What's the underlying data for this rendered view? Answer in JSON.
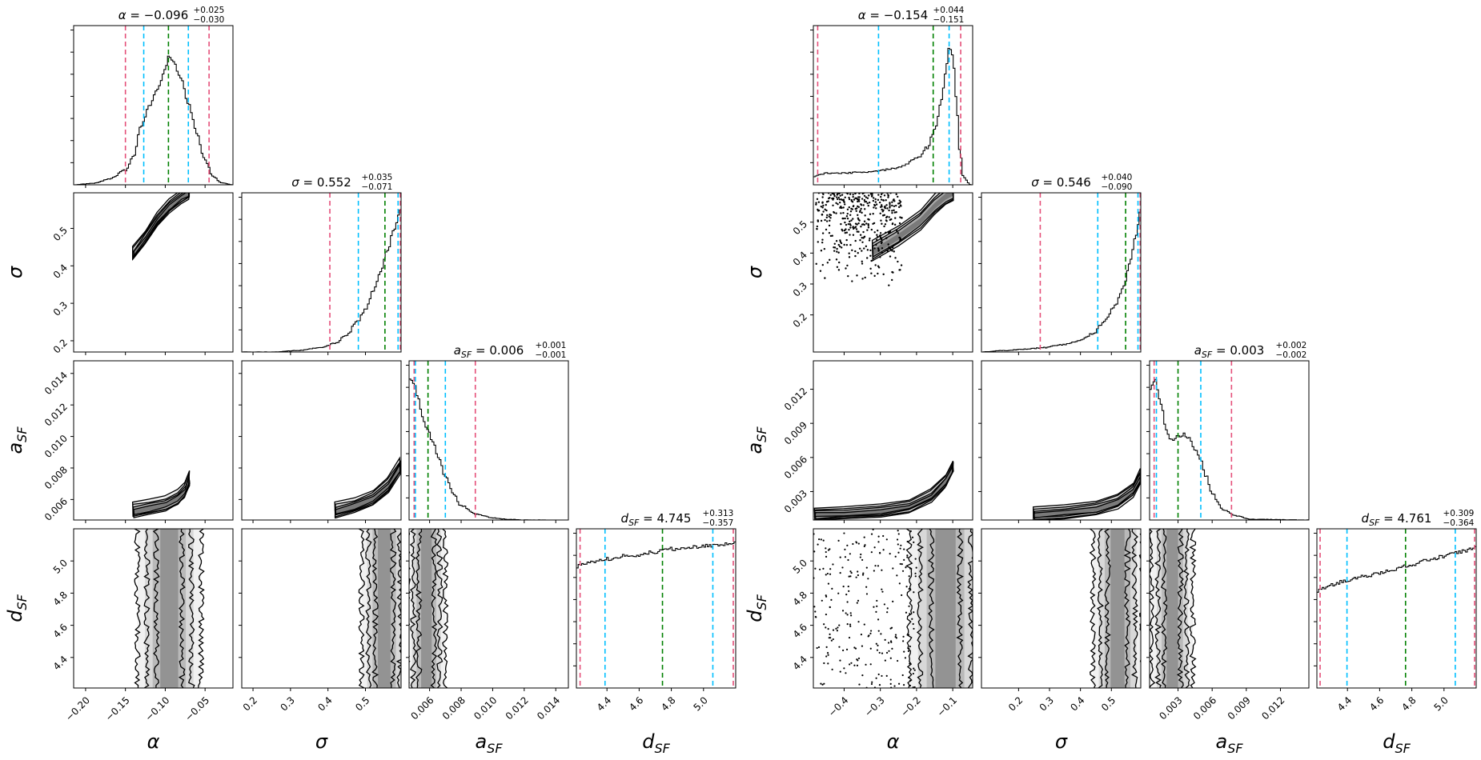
{
  "colors": {
    "median": "#008000",
    "inner_quantile": "#00bfff",
    "outer_quantile": "#e5507a",
    "contour": "#000000",
    "density_dark": "#404040",
    "density_light": "#e6e6e6"
  },
  "chart_data": [
    {
      "type": "corner",
      "params": [
        "α",
        "σ",
        "a_SF",
        "d_SF"
      ],
      "axis_labels": {
        "x": [
          "α",
          "σ",
          "a",
          "d"
        ],
        "y": [
          "σ",
          "a",
          "d"
        ],
        "subscript": "SF"
      },
      "titles": [
        {
          "symbol": "α",
          "sub": "",
          "value": "−0.096",
          "plus": "+0.025",
          "minus": "−0.030"
        },
        {
          "symbol": "σ",
          "sub": "",
          "value": "0.552",
          "plus": "+0.035",
          "minus": "−0.071"
        },
        {
          "symbol": "a",
          "sub": "SF",
          "value": "0.006",
          "plus": "+0.001",
          "minus": "−0.001"
        },
        {
          "symbol": "d",
          "sub": "SF",
          "value": "4.745",
          "plus": "+0.313",
          "minus": "−0.357"
        }
      ],
      "ranges": [
        [
          -0.215,
          -0.015
        ],
        [
          0.17,
          0.595
        ],
        [
          0.0047,
          0.0148
        ],
        [
          4.21,
          5.2
        ]
      ],
      "ticks": [
        [
          -0.2,
          -0.15,
          -0.1,
          -0.05
        ],
        [
          0.2,
          0.3,
          0.4,
          0.5
        ],
        [
          0.006,
          0.008,
          0.01,
          0.012,
          0.014
        ],
        [
          4.4,
          4.6,
          4.8,
          5.0
        ]
      ],
      "tick_labels": [
        [
          "−0.20",
          "−0.15",
          "−0.10",
          "−0.05"
        ],
        [
          "0.2",
          "0.3",
          "0.4",
          "0.5"
        ],
        [
          "0.006",
          "0.008",
          "0.010",
          "0.012",
          "0.014"
        ],
        [
          "4.4",
          "4.6",
          "4.8",
          "5.0"
        ]
      ],
      "quantiles": [
        {
          "outer_lo": -0.15,
          "inner_lo": -0.127,
          "median": -0.096,
          "inner_hi": -0.071,
          "outer_hi": -0.045
        },
        {
          "outer_lo": 0.405,
          "inner_lo": 0.481,
          "median": 0.552,
          "inner_hi": 0.587,
          "outer_hi": 0.593
        },
        {
          "outer_lo": 0.00502,
          "inner_lo": 0.0051,
          "median": 0.0059,
          "inner_hi": 0.007,
          "outer_hi": 0.0089
        },
        {
          "outer_lo": 4.233,
          "inner_lo": 4.388,
          "median": 4.745,
          "inner_hi": 5.058,
          "outer_hi": 5.185
        }
      ],
      "histograms": [
        {
          "x": [
            -0.215,
            -0.19,
            -0.17,
            -0.15,
            -0.14,
            -0.13,
            -0.12,
            -0.11,
            -0.1,
            -0.095,
            -0.09,
            -0.08,
            -0.07,
            -0.06,
            -0.05,
            -0.04,
            -0.03,
            -0.015
          ],
          "y": [
            0.0,
            0.01,
            0.04,
            0.1,
            0.2,
            0.42,
            0.55,
            0.66,
            0.8,
            0.9,
            0.86,
            0.74,
            0.55,
            0.35,
            0.17,
            0.06,
            0.015,
            0.0
          ]
        },
        {
          "x": [
            0.17,
            0.25,
            0.32,
            0.38,
            0.42,
            0.45,
            0.48,
            0.5,
            0.52,
            0.54,
            0.56,
            0.575,
            0.595
          ],
          "y": [
            0.0,
            0.0,
            0.01,
            0.03,
            0.06,
            0.12,
            0.22,
            0.3,
            0.42,
            0.55,
            0.72,
            0.85,
            1.0
          ]
        },
        {
          "x": [
            0.0047,
            0.005,
            0.0053,
            0.0056,
            0.0059,
            0.0062,
            0.0066,
            0.007,
            0.0075,
            0.008,
            0.009,
            0.01,
            0.011,
            0.012,
            0.0148
          ],
          "y": [
            1.0,
            0.96,
            0.84,
            0.7,
            0.62,
            0.55,
            0.42,
            0.3,
            0.18,
            0.1,
            0.04,
            0.015,
            0.005,
            0.0,
            0.0
          ]
        },
        {
          "x": [
            4.21,
            4.3,
            4.4,
            4.5,
            4.6,
            4.7,
            4.8,
            4.9,
            5.0,
            5.1,
            5.2
          ],
          "y": [
            0.85,
            0.88,
            0.9,
            0.92,
            0.93,
            0.95,
            0.97,
            0.98,
            0.99,
            1.0,
            1.01
          ]
        }
      ],
      "ridges": [
        {
          "pair": [
            1,
            0
          ],
          "pts": [
            [
              -0.14,
              0.43
            ],
            [
              -0.125,
              0.47
            ],
            [
              -0.11,
              0.52
            ],
            [
              -0.095,
              0.555
            ],
            [
              -0.08,
              0.58
            ],
            [
              -0.07,
              0.592
            ]
          ],
          "width": 0.022,
          "levels": 4
        },
        {
          "pair": [
            2,
            0
          ],
          "pts": [
            [
              -0.14,
              0.0052
            ],
            [
              -0.12,
              0.0054
            ],
            [
              -0.1,
              0.0056
            ],
            [
              -0.085,
              0.006
            ],
            [
              -0.075,
              0.0065
            ],
            [
              -0.07,
              0.0072
            ]
          ],
          "width": 0.0006,
          "levels": 4
        },
        {
          "pair": [
            2,
            1
          ],
          "pts": [
            [
              0.42,
              0.0052
            ],
            [
              0.47,
              0.0055
            ],
            [
              0.52,
              0.006
            ],
            [
              0.56,
              0.0068
            ],
            [
              0.593,
              0.008
            ]
          ],
          "width": 0.0006,
          "levels": 4
        },
        {
          "pair": [
            3,
            0
          ],
          "vertical": true,
          "center": -0.095,
          "spread": 0.04,
          "levels": 3
        },
        {
          "pair": [
            3,
            1
          ],
          "vertical": true,
          "center": 0.55,
          "spread": 0.06,
          "levels": 3
        },
        {
          "pair": [
            3,
            2
          ],
          "vertical": true,
          "center": 0.0058,
          "spread": 0.0012,
          "levels": 3
        }
      ]
    },
    {
      "type": "corner",
      "params": [
        "α",
        "σ",
        "a_SF",
        "d_SF"
      ],
      "axis_labels": {
        "x": [
          "α",
          "σ",
          "a",
          "d"
        ],
        "y": [
          "σ",
          "a",
          "d"
        ],
        "subscript": "SF"
      },
      "titles": [
        {
          "symbol": "α",
          "sub": "",
          "value": "−0.154",
          "plus": "+0.044",
          "minus": "−0.151"
        },
        {
          "symbol": "σ",
          "sub": "",
          "value": "0.546",
          "plus": "+0.040",
          "minus": "−0.090"
        },
        {
          "symbol": "a",
          "sub": "SF",
          "value": "0.003",
          "plus": "+0.002",
          "minus": "−0.002"
        },
        {
          "symbol": "d",
          "sub": "SF",
          "value": "4.761",
          "plus": "+0.309",
          "minus": "−0.364"
        }
      ],
      "ranges": [
        [
          -0.485,
          -0.045
        ],
        [
          0.08,
          0.595
        ],
        [
          0.0005,
          0.0145
        ],
        [
          4.21,
          5.2
        ]
      ],
      "ticks": [
        [
          -0.4,
          -0.3,
          -0.2,
          -0.1
        ],
        [
          0.2,
          0.3,
          0.4,
          0.5
        ],
        [
          0.003,
          0.006,
          0.009,
          0.012
        ],
        [
          4.4,
          4.6,
          4.8,
          5.0
        ]
      ],
      "tick_labels": [
        [
          "−0.4",
          "−0.3",
          "−0.2",
          "−0.1"
        ],
        [
          "0.2",
          "0.3",
          "0.4",
          "0.5"
        ],
        [
          "0.003",
          "0.006",
          "0.009",
          "0.012"
        ],
        [
          "4.4",
          "4.6",
          "4.8",
          "5.0"
        ]
      ],
      "quantiles": [
        {
          "outer_lo": -0.473,
          "inner_lo": -0.305,
          "median": -0.154,
          "inner_hi": -0.11,
          "outer_hi": -0.078
        },
        {
          "outer_lo": 0.27,
          "inner_lo": 0.456,
          "median": 0.546,
          "inner_hi": 0.586,
          "outer_hi": 0.593
        },
        {
          "outer_lo": 0.0009,
          "inner_lo": 0.0011,
          "median": 0.003,
          "inner_hi": 0.005,
          "outer_hi": 0.0077
        },
        {
          "outer_lo": 4.23,
          "inner_lo": 4.397,
          "median": 4.761,
          "inner_hi": 5.07,
          "outer_hi": 5.19
        }
      ],
      "histograms": [
        {
          "x": [
            -0.485,
            -0.45,
            -0.4,
            -0.35,
            -0.3,
            -0.25,
            -0.2,
            -0.17,
            -0.15,
            -0.13,
            -0.12,
            -0.11,
            -0.1,
            -0.09,
            -0.08,
            -0.07,
            -0.05
          ],
          "y": [
            0.06,
            0.08,
            0.08,
            0.09,
            0.1,
            0.12,
            0.18,
            0.26,
            0.38,
            0.6,
            0.78,
            0.95,
            0.9,
            0.6,
            0.22,
            0.05,
            0.0
          ]
        },
        {
          "x": [
            0.08,
            0.15,
            0.22,
            0.28,
            0.34,
            0.4,
            0.44,
            0.48,
            0.51,
            0.54,
            0.56,
            0.58,
            0.595
          ],
          "y": [
            0.0,
            0.01,
            0.02,
            0.03,
            0.05,
            0.08,
            0.13,
            0.22,
            0.32,
            0.46,
            0.62,
            0.82,
            1.0
          ]
        },
        {
          "x": [
            0.0005,
            0.001,
            0.0015,
            0.002,
            0.0025,
            0.003,
            0.0035,
            0.004,
            0.0045,
            0.005,
            0.0055,
            0.006,
            0.007,
            0.008,
            0.0095,
            0.0145
          ],
          "y": [
            0.92,
            0.98,
            0.8,
            0.62,
            0.55,
            0.58,
            0.6,
            0.57,
            0.5,
            0.42,
            0.3,
            0.18,
            0.07,
            0.03,
            0.005,
            0.0
          ]
        },
        {
          "x": [
            4.21,
            4.3,
            4.4,
            4.5,
            4.6,
            4.7,
            4.8,
            4.9,
            5.0,
            5.1,
            5.2
          ],
          "y": [
            0.68,
            0.72,
            0.75,
            0.78,
            0.8,
            0.83,
            0.86,
            0.89,
            0.92,
            0.95,
            0.98
          ]
        }
      ],
      "ridges": [
        {
          "pair": [
            1,
            0
          ],
          "pts": [
            [
              -0.32,
              0.4
            ],
            [
              -0.25,
              0.45
            ],
            [
              -0.19,
              0.5
            ],
            [
              -0.15,
              0.55
            ],
            [
              -0.12,
              0.58
            ],
            [
              -0.1,
              0.592
            ]
          ],
          "width": 0.04,
          "levels": 3,
          "scatter": [
            [
              -0.485,
              -0.24
            ],
            [
              0.28,
              0.595
            ]
          ]
        },
        {
          "pair": [
            2,
            0
          ],
          "pts": [
            [
              -0.48,
              0.0009
            ],
            [
              -0.4,
              0.001
            ],
            [
              -0.3,
              0.0012
            ],
            [
              -0.22,
              0.0016
            ],
            [
              -0.16,
              0.0025
            ],
            [
              -0.12,
              0.0038
            ],
            [
              -0.1,
              0.005
            ]
          ],
          "width": 0.0007,
          "levels": 4
        },
        {
          "pair": [
            2,
            1
          ],
          "pts": [
            [
              0.25,
              0.0009
            ],
            [
              0.35,
              0.0011
            ],
            [
              0.45,
              0.0014
            ],
            [
              0.52,
              0.002
            ],
            [
              0.57,
              0.003
            ],
            [
              0.593,
              0.0042
            ]
          ],
          "width": 0.0008,
          "levels": 4
        },
        {
          "pair": [
            3,
            0
          ],
          "vertical": true,
          "center": -0.12,
          "spread": 0.1,
          "levels": 3,
          "scatter_x": [
            -0.485,
            -0.2
          ]
        },
        {
          "pair": [
            3,
            1
          ],
          "vertical": true,
          "center": 0.52,
          "spread": 0.08,
          "levels": 3
        },
        {
          "pair": [
            3,
            2
          ],
          "vertical": true,
          "center": 0.0025,
          "spread": 0.0018,
          "levels": 3
        }
      ]
    }
  ]
}
